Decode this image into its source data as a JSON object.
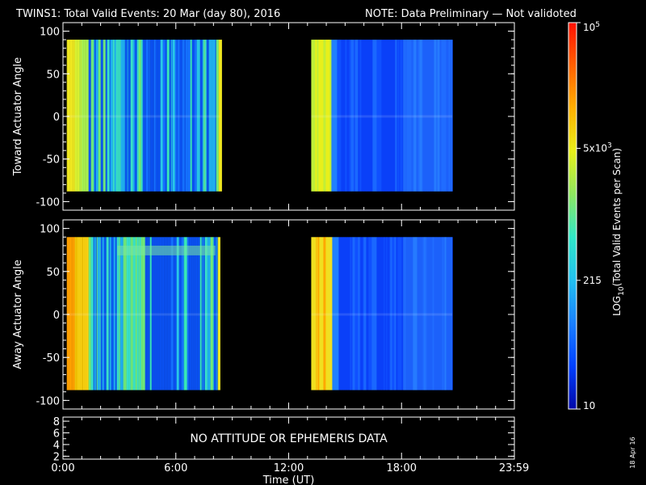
{
  "title": {
    "main": "TWINS1: Total Valid Events: 20 Mar (day  80), 2016",
    "note": "NOTE: Data Preliminary — Not validoted",
    "note_color": "#ff2020"
  },
  "footer_date": "18 Apr 16",
  "chart_data": [
    {
      "type": "heatmap",
      "ylabel": "Toward Actuator Angle",
      "ylim": [
        -110,
        110
      ],
      "yticks": [
        "100",
        "50",
        "0",
        "-50",
        "-100"
      ],
      "ytick_values": [
        100,
        50,
        0,
        -50,
        -100
      ],
      "data_ylim": [
        -88,
        90
      ],
      "data_blocks_hours": [
        [
          0.2,
          8.35
        ],
        [
          13.2,
          20.7
        ]
      ]
    },
    {
      "type": "heatmap",
      "ylabel": "Away Actuator Angle",
      "ylim": [
        -110,
        110
      ],
      "yticks": [
        "100",
        "50",
        "0",
        "-50",
        "-100"
      ],
      "ytick_values": [
        100,
        50,
        0,
        -50,
        -100
      ],
      "data_ylim": [
        -88,
        90
      ],
      "data_blocks_hours": [
        [
          0.2,
          8.35
        ],
        [
          13.2,
          20.7
        ]
      ]
    },
    {
      "type": "table",
      "yticks": [
        "8",
        "6",
        "4",
        "2"
      ],
      "ytick_values": [
        8,
        6,
        4,
        2
      ],
      "ylim": [
        1.5,
        8.7
      ],
      "message": "NO ATTITUDE OR EPHEMERIS DATA"
    }
  ],
  "xaxis": {
    "label": "Time (UT)",
    "xlim_hours": [
      0,
      24
    ],
    "tick_labels": [
      "0:00",
      "6:00",
      "12:00",
      "18:00",
      "23:59"
    ],
    "tick_hours": [
      0,
      6,
      12,
      18,
      23.983
    ]
  },
  "colorbar": {
    "label": "LOG10(Total Valid Events per Scan)",
    "label_base": "LOG",
    "label_sub": "10",
    "label_rest": "(Total Valid Events per Scan)",
    "range": [
      10,
      100000
    ],
    "ticks": [
      {
        "value": 100000,
        "mantissa": "10",
        "exp": "5"
      },
      {
        "value": 5000,
        "mantissa": "5x10",
        "exp": "3"
      },
      {
        "value": 215,
        "mantissa": "215",
        "exp": ""
      },
      {
        "value": 10,
        "mantissa": "10",
        "exp": ""
      }
    ],
    "colors": [
      "#0008a8",
      "#0040ff",
      "#1a80ff",
      "#22c0f0",
      "#30e8c8",
      "#8ee860",
      "#e8ef1a",
      "#ffb000",
      "#ff6000",
      "#ff1000"
    ]
  }
}
